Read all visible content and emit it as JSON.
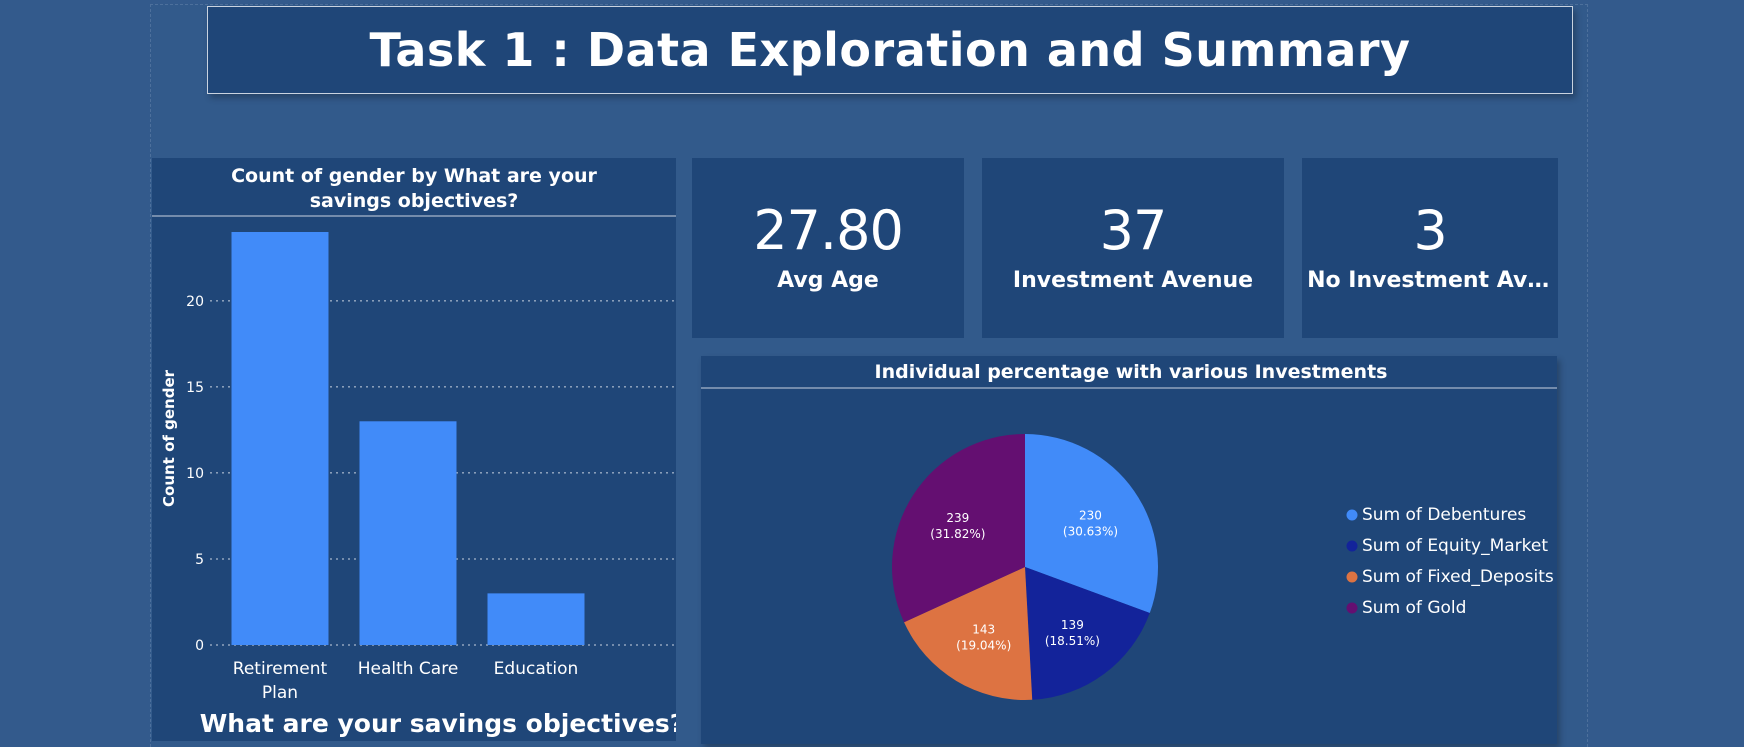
{
  "header": {
    "title": "Task 1 : Data Exploration and Summary"
  },
  "cards": [
    {
      "value": "27.80",
      "label": "Avg Age"
    },
    {
      "value": "37",
      "label": "Investment Avenue"
    },
    {
      "value": "3",
      "label": "No Investment Aven..."
    }
  ],
  "chart_data": [
    {
      "type": "bar",
      "title": "Count of gender by What are your savings objectives?",
      "categories": [
        "Retirement Plan",
        "Health Care",
        "Education"
      ],
      "category_lines": [
        [
          "Retirement",
          "Plan"
        ],
        [
          "Health Care"
        ],
        [
          "Education"
        ]
      ],
      "values": [
        24,
        13,
        3
      ],
      "xlabel": "What are your savings objectives?",
      "ylabel": "Count of gender",
      "ylim": [
        0,
        24
      ],
      "yticks": [
        0,
        5,
        10,
        15,
        20
      ],
      "grid": true,
      "colors": {
        "bar": "#418bf9"
      }
    },
    {
      "type": "pie",
      "title": "Individual percentage with various Investments",
      "series": [
        {
          "name": "Sum of Debentures",
          "value": 230,
          "label": "230",
          "pct": "(30.63%)",
          "color": "#418bf9"
        },
        {
          "name": "Sum of Equity_Market",
          "value": 139,
          "label": "139",
          "pct": "(18.51%)",
          "color": "#13239a"
        },
        {
          "name": "Sum of Fixed_Deposits",
          "value": 143,
          "label": "143",
          "pct": "(19.04%)",
          "color": "#dd7342"
        },
        {
          "name": "Sum of Gold",
          "value": 239,
          "label": "239",
          "pct": "(31.82%)",
          "color": "#640f71"
        }
      ],
      "legend": "right"
    }
  ]
}
